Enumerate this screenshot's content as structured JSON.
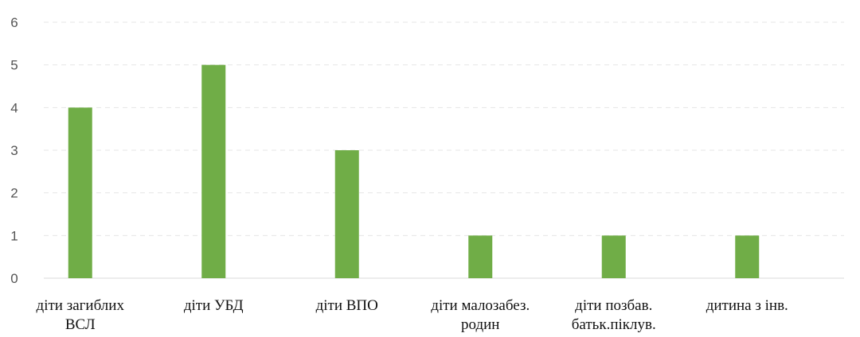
{
  "chart_data": {
    "type": "bar",
    "categories": [
      [
        "діти загиблих",
        "ВСЛ"
      ],
      [
        "діти УБД"
      ],
      [
        "діти ВПО"
      ],
      [
        "діти малозабез.",
        "родин"
      ],
      [
        "діти позбав.",
        "батьк.піклув."
      ],
      [
        "дитина з інв."
      ]
    ],
    "values": [
      4,
      5,
      3,
      1,
      1,
      1
    ],
    "ylim": [
      0,
      6
    ],
    "yticks": [
      "0",
      "1",
      "2",
      "3",
      "4",
      "5",
      "6"
    ],
    "bar_color": "#70ad47",
    "grid": true,
    "legend": "none",
    "title": "",
    "xlabel": "",
    "ylabel": ""
  }
}
